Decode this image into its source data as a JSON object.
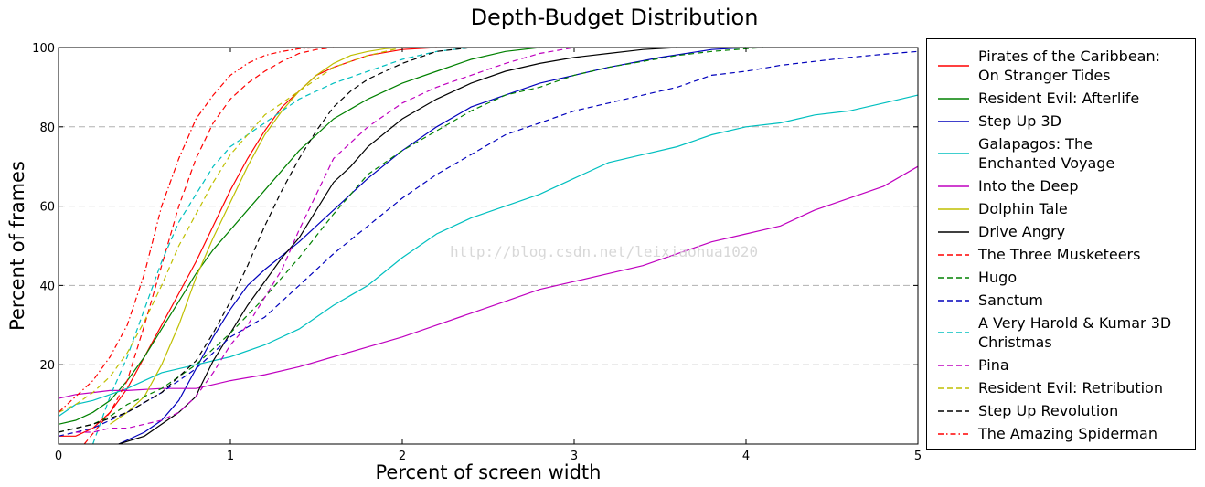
{
  "chart_data": {
    "type": "line",
    "title": "Depth-Budget Distribution",
    "xlabel": "Percent of screen width",
    "ylabel": "Percent of frames",
    "xlim": [
      0,
      5
    ],
    "ylim": [
      0,
      100
    ],
    "xticks": [
      0,
      1,
      2,
      3,
      4,
      5
    ],
    "yticks": [
      20,
      40,
      60,
      80,
      100
    ],
    "grid": "horizontal dashed at y ticks",
    "legend_position": "outside right",
    "watermark": "http://blog.csdn.net/leixiaohua1020",
    "series": [
      {
        "name": "Pirates of the Caribbean:\nOn Stranger Tides",
        "color": "#ff0000",
        "dash": "solid",
        "x": [
          0,
          0.1,
          0.2,
          0.3,
          0.4,
          0.5,
          0.6,
          0.7,
          0.8,
          0.9,
          1.0,
          1.1,
          1.2,
          1.3,
          1.4,
          1.5,
          1.6,
          1.8,
          2.0,
          2.2
        ],
        "y": [
          2,
          2,
          4,
          8,
          14,
          22,
          30,
          38,
          46,
          55,
          64,
          72,
          79,
          85,
          89,
          93,
          95,
          98,
          99.5,
          100
        ]
      },
      {
        "name": "Resident Evil: Afterlife",
        "color": "#008000",
        "dash": "solid",
        "x": [
          0,
          0.1,
          0.2,
          0.3,
          0.4,
          0.5,
          0.6,
          0.7,
          0.8,
          0.9,
          1.0,
          1.2,
          1.4,
          1.6,
          1.8,
          2.0,
          2.2,
          2.4,
          2.6,
          2.8
        ],
        "y": [
          5,
          6,
          8,
          11,
          16,
          22,
          29,
          36,
          43,
          49,
          54,
          64,
          74,
          82,
          87,
          91,
          94,
          97,
          99,
          100
        ]
      },
      {
        "name": "Step Up 3D",
        "color": "#0000bb",
        "dash": "solid",
        "x": [
          0.35,
          0.5,
          0.6,
          0.7,
          0.8,
          0.9,
          1.0,
          1.1,
          1.2,
          1.4,
          1.6,
          1.8,
          2.0,
          2.2,
          2.4,
          2.6,
          2.8,
          3.0,
          3.2,
          3.5,
          3.8,
          4.0
        ],
        "y": [
          0,
          3,
          6,
          11,
          19,
          27,
          34,
          40,
          44,
          51,
          59,
          67,
          74,
          80,
          85,
          88,
          91,
          93,
          95,
          97.5,
          99.5,
          100
        ]
      },
      {
        "name": "Galapagos: The\nEnchanted Voyage",
        "color": "#00bfbf",
        "dash": "solid",
        "x": [
          0,
          0.1,
          0.2,
          0.3,
          0.4,
          0.5,
          0.6,
          0.8,
          1.0,
          1.2,
          1.4,
          1.6,
          1.8,
          2.0,
          2.2,
          2.4,
          2.6,
          2.8,
          3.0,
          3.2,
          3.4,
          3.6,
          3.8,
          4.0,
          4.2,
          4.4,
          4.6,
          4.8,
          5.0
        ],
        "y": [
          7,
          10,
          11,
          12.5,
          14,
          16,
          18,
          20,
          22,
          25,
          29,
          35,
          40,
          47,
          53,
          57,
          60,
          63,
          67,
          71,
          73,
          75,
          78,
          80,
          81,
          83,
          84,
          86,
          88
        ]
      },
      {
        "name": "Into the Deep",
        "color": "#bf00bf",
        "dash": "solid",
        "x": [
          0,
          0.1,
          0.2,
          0.3,
          0.4,
          0.6,
          0.8,
          0.9,
          1.0,
          1.2,
          1.4,
          1.6,
          1.8,
          2.0,
          2.2,
          2.4,
          2.6,
          2.8,
          3.0,
          3.2,
          3.4,
          3.6,
          3.8,
          4.0,
          4.2,
          4.4,
          4.6,
          4.8,
          5.0
        ],
        "y": [
          11.5,
          12.5,
          13,
          13.5,
          13.5,
          14,
          14,
          15,
          16,
          17.5,
          19.5,
          22,
          24.5,
          27,
          30,
          33,
          36,
          39,
          41,
          43,
          45,
          48,
          51,
          53,
          55,
          59,
          62,
          65,
          70
        ]
      },
      {
        "name": "Dolphin Tale",
        "color": "#bfbf00",
        "dash": "solid",
        "x": [
          0.3,
          0.4,
          0.5,
          0.6,
          0.7,
          0.8,
          0.9,
          1.0,
          1.1,
          1.2,
          1.3,
          1.4,
          1.5,
          1.6,
          1.7,
          1.8,
          1.9,
          2.0
        ],
        "y": [
          5,
          8,
          12,
          20,
          30,
          42,
          52,
          61,
          70,
          78,
          84,
          89,
          93,
          96,
          98,
          99,
          99.7,
          100
        ]
      },
      {
        "name": "Drive Angry",
        "color": "#000000",
        "dash": "solid",
        "x": [
          0.35,
          0.5,
          0.6,
          0.7,
          0.8,
          0.82,
          0.9,
          1.0,
          1.1,
          1.2,
          1.3,
          1.4,
          1.5,
          1.6,
          1.7,
          1.8,
          2.0,
          2.2,
          2.4,
          2.6,
          2.8,
          3.0,
          3.2,
          3.4,
          3.6
        ],
        "y": [
          0,
          2,
          5,
          8,
          12,
          14,
          21,
          28,
          35,
          41,
          47,
          52,
          59,
          66,
          70,
          75,
          82,
          87,
          91,
          94,
          96,
          97.5,
          98.5,
          99.5,
          100
        ]
      },
      {
        "name": "The Three Musketeers",
        "color": "#ff0000",
        "dash": "dashed",
        "x": [
          0.15,
          0.3,
          0.4,
          0.5,
          0.6,
          0.7,
          0.8,
          0.9,
          1.0,
          1.1,
          1.2,
          1.3,
          1.4,
          1.5,
          1.6
        ],
        "y": [
          0,
          8,
          16,
          30,
          45,
          60,
          72,
          81,
          87,
          91,
          94,
          96.5,
          98.5,
          99.5,
          100
        ]
      },
      {
        "name": "Hugo",
        "color": "#008000",
        "dash": "dashed",
        "x": [
          0,
          0.1,
          0.2,
          0.3,
          0.4,
          0.6,
          0.8,
          1.0,
          1.2,
          1.4,
          1.6,
          1.8,
          2.0,
          2.2,
          2.4,
          2.6,
          2.8,
          3.0,
          3.2,
          3.4,
          3.6,
          3.8,
          4.0,
          4.1
        ],
        "y": [
          3,
          4,
          5,
          7,
          10,
          14,
          20,
          28,
          37,
          47,
          58,
          68,
          74,
          79,
          84,
          88,
          90,
          93,
          95,
          96.5,
          98,
          99,
          99.7,
          100
        ]
      },
      {
        "name": "Sanctum",
        "color": "#0000bb",
        "dash": "dashed",
        "x": [
          0,
          0.1,
          0.2,
          0.3,
          0.4,
          0.6,
          0.8,
          1.0,
          1.2,
          1.4,
          1.6,
          1.8,
          2.0,
          2.2,
          2.4,
          2.6,
          2.8,
          3.0,
          3.2,
          3.4,
          3.6,
          3.8,
          4.0,
          4.2,
          4.4,
          4.6,
          4.8,
          5.0
        ],
        "y": [
          2,
          3,
          4,
          6,
          8,
          13,
          19,
          27,
          32,
          40,
          48,
          55,
          62,
          68,
          73,
          78,
          81,
          84,
          86,
          88,
          90,
          93,
          94,
          95.5,
          96.5,
          97.5,
          98.3,
          99
        ]
      },
      {
        "name": "A Very Harold & Kumar 3D\nChristmas",
        "color": "#00bfbf",
        "dash": "dashed",
        "x": [
          0.2,
          0.3,
          0.4,
          0.5,
          0.6,
          0.7,
          0.8,
          0.9,
          1.0,
          1.1,
          1.2,
          1.4,
          1.6,
          1.8,
          2.0,
          2.2,
          2.4
        ],
        "y": [
          0,
          12,
          22,
          34,
          46,
          56,
          63,
          70,
          75,
          78,
          81,
          87,
          91,
          94,
          97,
          99,
          100
        ]
      },
      {
        "name": "Pina",
        "color": "#bf00bf",
        "dash": "dashed",
        "x": [
          0.1,
          0.2,
          0.3,
          0.4,
          0.5,
          0.6,
          0.7,
          0.8,
          0.9,
          1.0,
          1.1,
          1.2,
          1.3,
          1.4,
          1.5,
          1.6,
          1.8,
          2.0,
          2.2,
          2.4,
          2.6,
          2.8,
          3.0
        ],
        "y": [
          3,
          3,
          4,
          4,
          5,
          6,
          8,
          12,
          18,
          25,
          30,
          37,
          44,
          54,
          63,
          72,
          80,
          86,
          90,
          93,
          96,
          98.5,
          100
        ]
      },
      {
        "name": "Resident Evil: Retribution",
        "color": "#bfbf00",
        "dash": "dashed",
        "x": [
          0,
          0.1,
          0.2,
          0.3,
          0.4,
          0.5,
          0.6,
          0.7,
          0.8,
          0.9,
          1.0,
          1.1,
          1.2,
          1.3,
          1.4,
          1.5,
          1.6,
          1.8,
          2.0
        ],
        "y": [
          8,
          10,
          13,
          17,
          23,
          31,
          40,
          50,
          58,
          66,
          73,
          78,
          83,
          86,
          89,
          92,
          95,
          98,
          100
        ]
      },
      {
        "name": "Step Up Revolution",
        "color": "#000000",
        "dash": "dashed",
        "x": [
          0,
          0.2,
          0.4,
          0.6,
          0.8,
          0.9,
          1.0,
          1.1,
          1.2,
          1.3,
          1.4,
          1.5,
          1.6,
          1.7,
          1.8,
          2.0,
          2.2,
          2.4
        ],
        "y": [
          3,
          5,
          8,
          13,
          21,
          28,
          36,
          45,
          55,
          64,
          72,
          79,
          85,
          89,
          92,
          96,
          99,
          100
        ]
      },
      {
        "name": "The Amazing Spiderman",
        "color": "#ff0000",
        "dash": "dashdot",
        "x": [
          0,
          0.1,
          0.2,
          0.3,
          0.4,
          0.5,
          0.6,
          0.7,
          0.8,
          0.9,
          1.0,
          1.1,
          1.2,
          1.3,
          1.4,
          1.5
        ],
        "y": [
          8,
          12,
          16,
          22,
          30,
          43,
          60,
          72,
          82,
          88,
          93,
          96,
          98,
          99,
          99.7,
          100
        ]
      }
    ]
  }
}
